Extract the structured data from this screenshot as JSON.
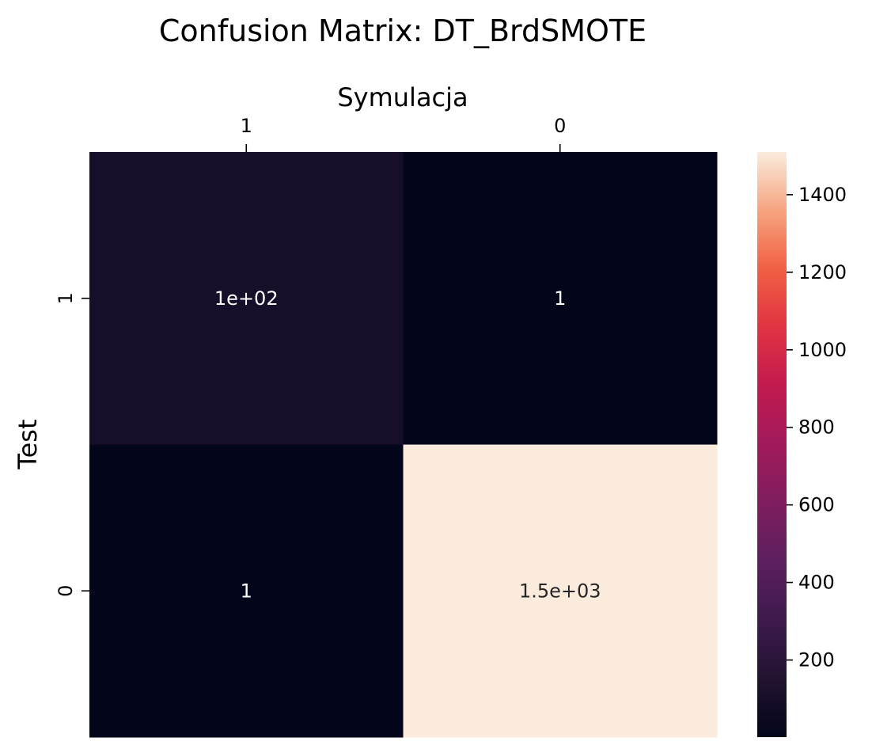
{
  "chart_data": {
    "type": "heatmap",
    "title": "Confusion Matrix: DT_BrdSMOTE",
    "xlabel": "Symulacja",
    "ylabel": "Test",
    "x_categories": [
      "1",
      "0"
    ],
    "y_categories": [
      "1",
      "0"
    ],
    "values": [
      [
        100,
        1
      ],
      [
        1,
        1510
      ]
    ],
    "annotations": [
      [
        "1e+02",
        "1"
      ],
      [
        "1",
        "1.5e+03"
      ]
    ],
    "x_axis_position": "top",
    "colormap": "rocket",
    "colorbar": {
      "range": [
        1,
        1510
      ],
      "ticks": [
        200,
        400,
        600,
        800,
        1000,
        1200,
        1400
      ],
      "tick_labels": [
        "200",
        "400",
        "600",
        "800",
        "1000",
        "1200",
        "1400"
      ]
    },
    "grid": false,
    "legend": "colorbar-right"
  }
}
